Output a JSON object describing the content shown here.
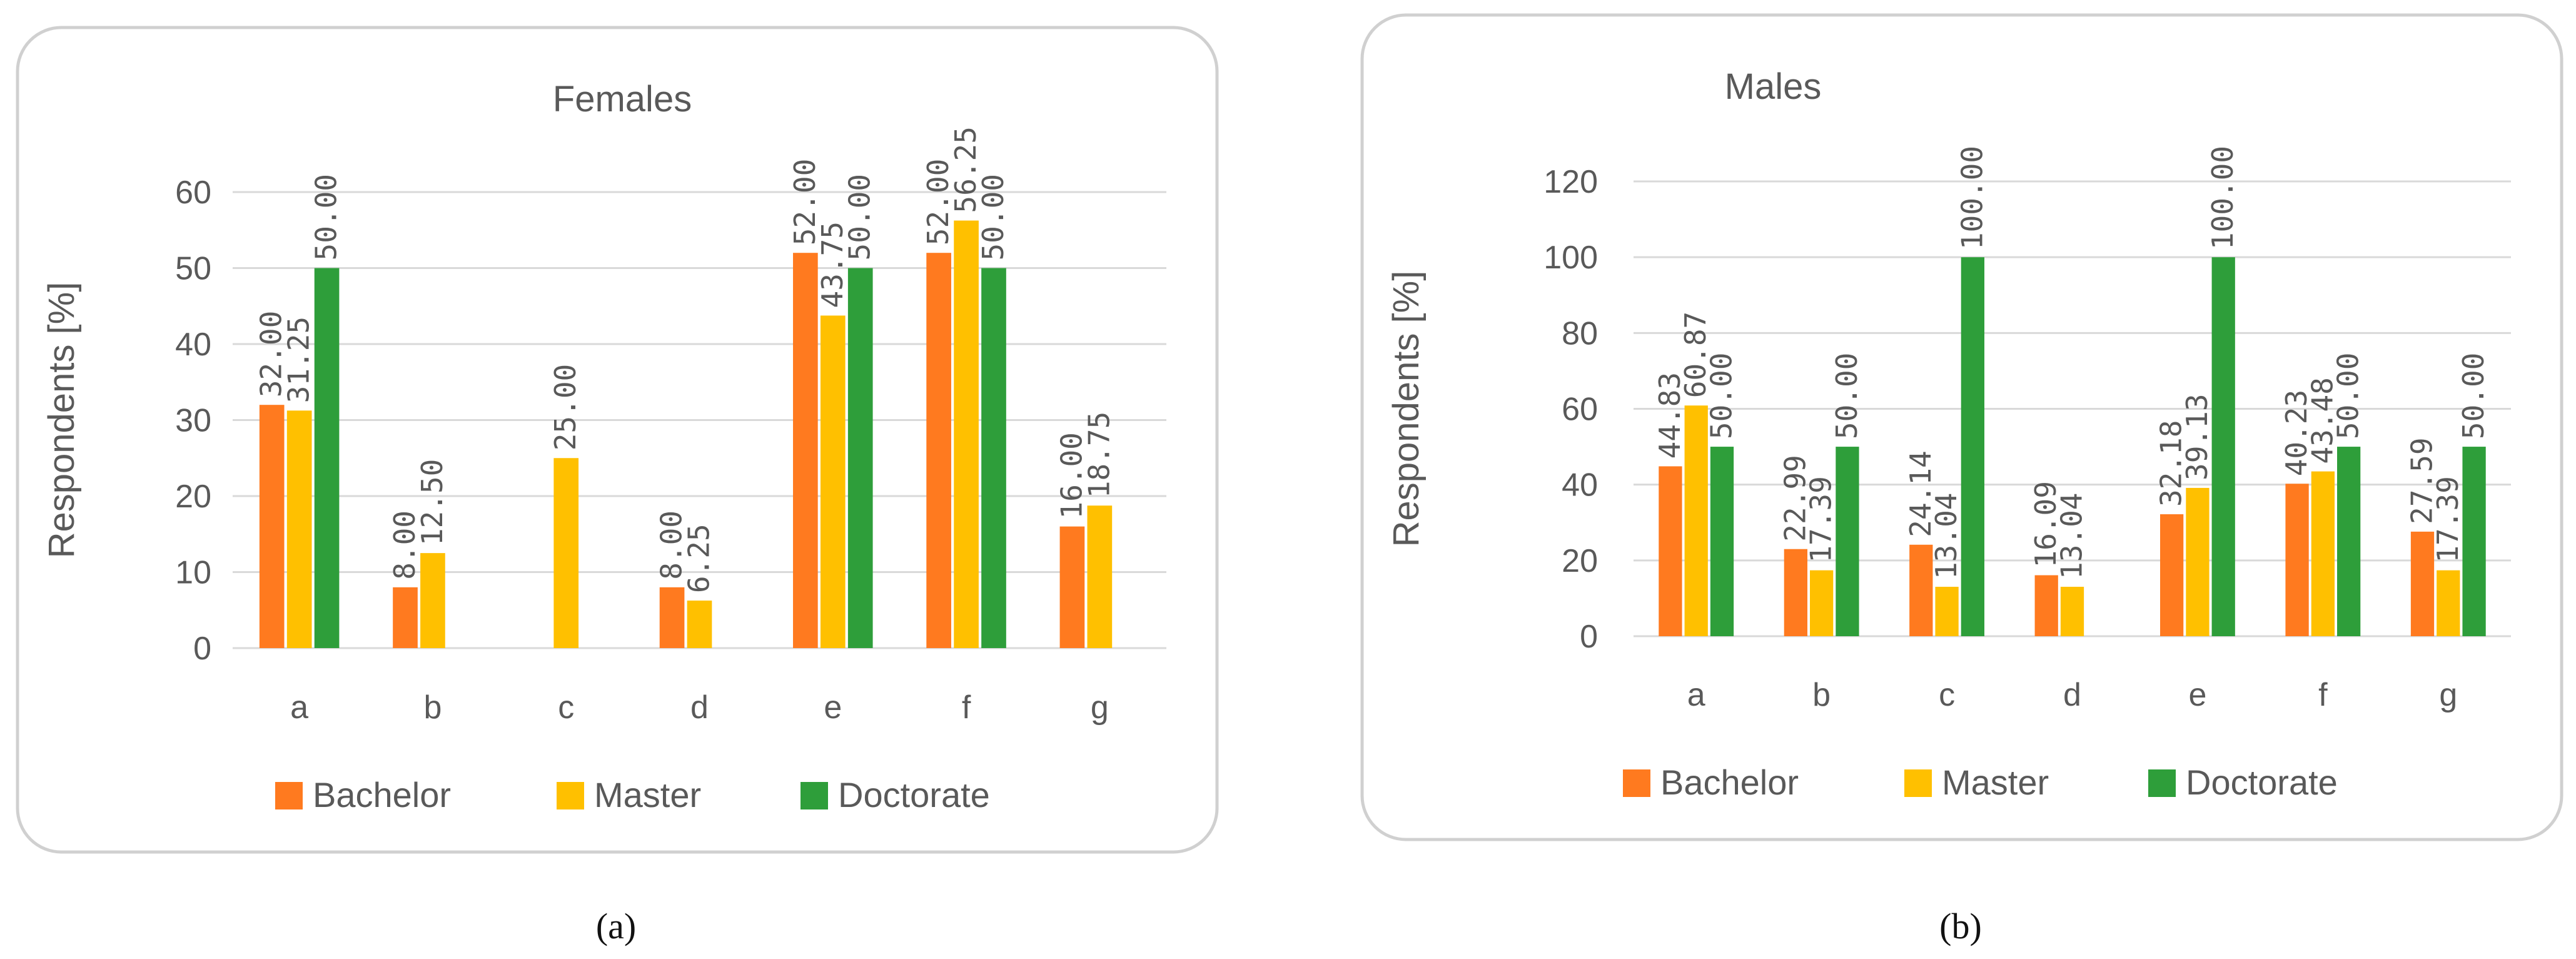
{
  "chart_data": [
    {
      "type": "bar",
      "panel": "a",
      "title": "Females",
      "ylabel": "Respondents [%]",
      "xlabel": "",
      "ylim": [
        0,
        60
      ],
      "yticks": [
        0,
        10,
        20,
        30,
        40,
        50,
        60
      ],
      "categories": [
        "a",
        "b",
        "c",
        "d",
        "e",
        "f",
        "g"
      ],
      "series": [
        {
          "name": "Bachelor",
          "color": "#ff7a1f",
          "values": [
            32.0,
            8.0,
            null,
            8.0,
            52.0,
            52.0,
            16.0
          ],
          "labels": [
            "32.00",
            "8.00",
            null,
            "8.00",
            "52.00",
            "52.00",
            "16.00"
          ]
        },
        {
          "name": "Master",
          "color": "#ffc000",
          "values": [
            31.25,
            12.5,
            25.0,
            6.25,
            43.75,
            56.25,
            18.75
          ],
          "labels": [
            "31.25",
            "12.50",
            "25.00",
            "6.25",
            "43.75",
            "56.25",
            "18.75"
          ]
        },
        {
          "name": "Doctorate",
          "color": "#2e9e3a",
          "values": [
            50.0,
            null,
            null,
            null,
            50.0,
            50.0,
            null
          ],
          "labels": [
            "50.00",
            null,
            null,
            null,
            "50.00",
            "50.00",
            null
          ]
        }
      ],
      "legend": "bottom",
      "grid": true
    },
    {
      "type": "bar",
      "panel": "b",
      "title": "Males",
      "ylabel": "Respondents [%]",
      "xlabel": "",
      "ylim": [
        0,
        120
      ],
      "yticks": [
        0,
        20,
        40,
        60,
        80,
        100,
        120
      ],
      "categories": [
        "a",
        "b",
        "c",
        "d",
        "e",
        "f",
        "g"
      ],
      "series": [
        {
          "name": "Bachelor",
          "color": "#ff7a1f",
          "values": [
            44.83,
            22.99,
            24.14,
            16.09,
            32.18,
            40.23,
            27.59
          ],
          "labels": [
            "44.83",
            "22.99",
            "24.14",
            "16.09",
            "32.18",
            "40.23",
            "27.59"
          ]
        },
        {
          "name": "Master",
          "color": "#ffc000",
          "values": [
            60.87,
            17.39,
            13.04,
            13.04,
            39.13,
            43.48,
            17.39
          ],
          "labels": [
            "60.87",
            "17.39",
            "13.04",
            "13.04",
            "39.13",
            "43.48",
            "17.39"
          ]
        },
        {
          "name": "Doctorate",
          "color": "#2e9e3a",
          "values": [
            50.0,
            50.0,
            100.0,
            null,
            100.0,
            50.0,
            50.0
          ],
          "labels": [
            "50.00",
            "50.00",
            "100.00",
            null,
            "100.00",
            "50.00",
            "50.00"
          ]
        }
      ],
      "legend": "bottom",
      "grid": true
    }
  ],
  "captions": {
    "a": "(a)",
    "b": "(b)"
  }
}
